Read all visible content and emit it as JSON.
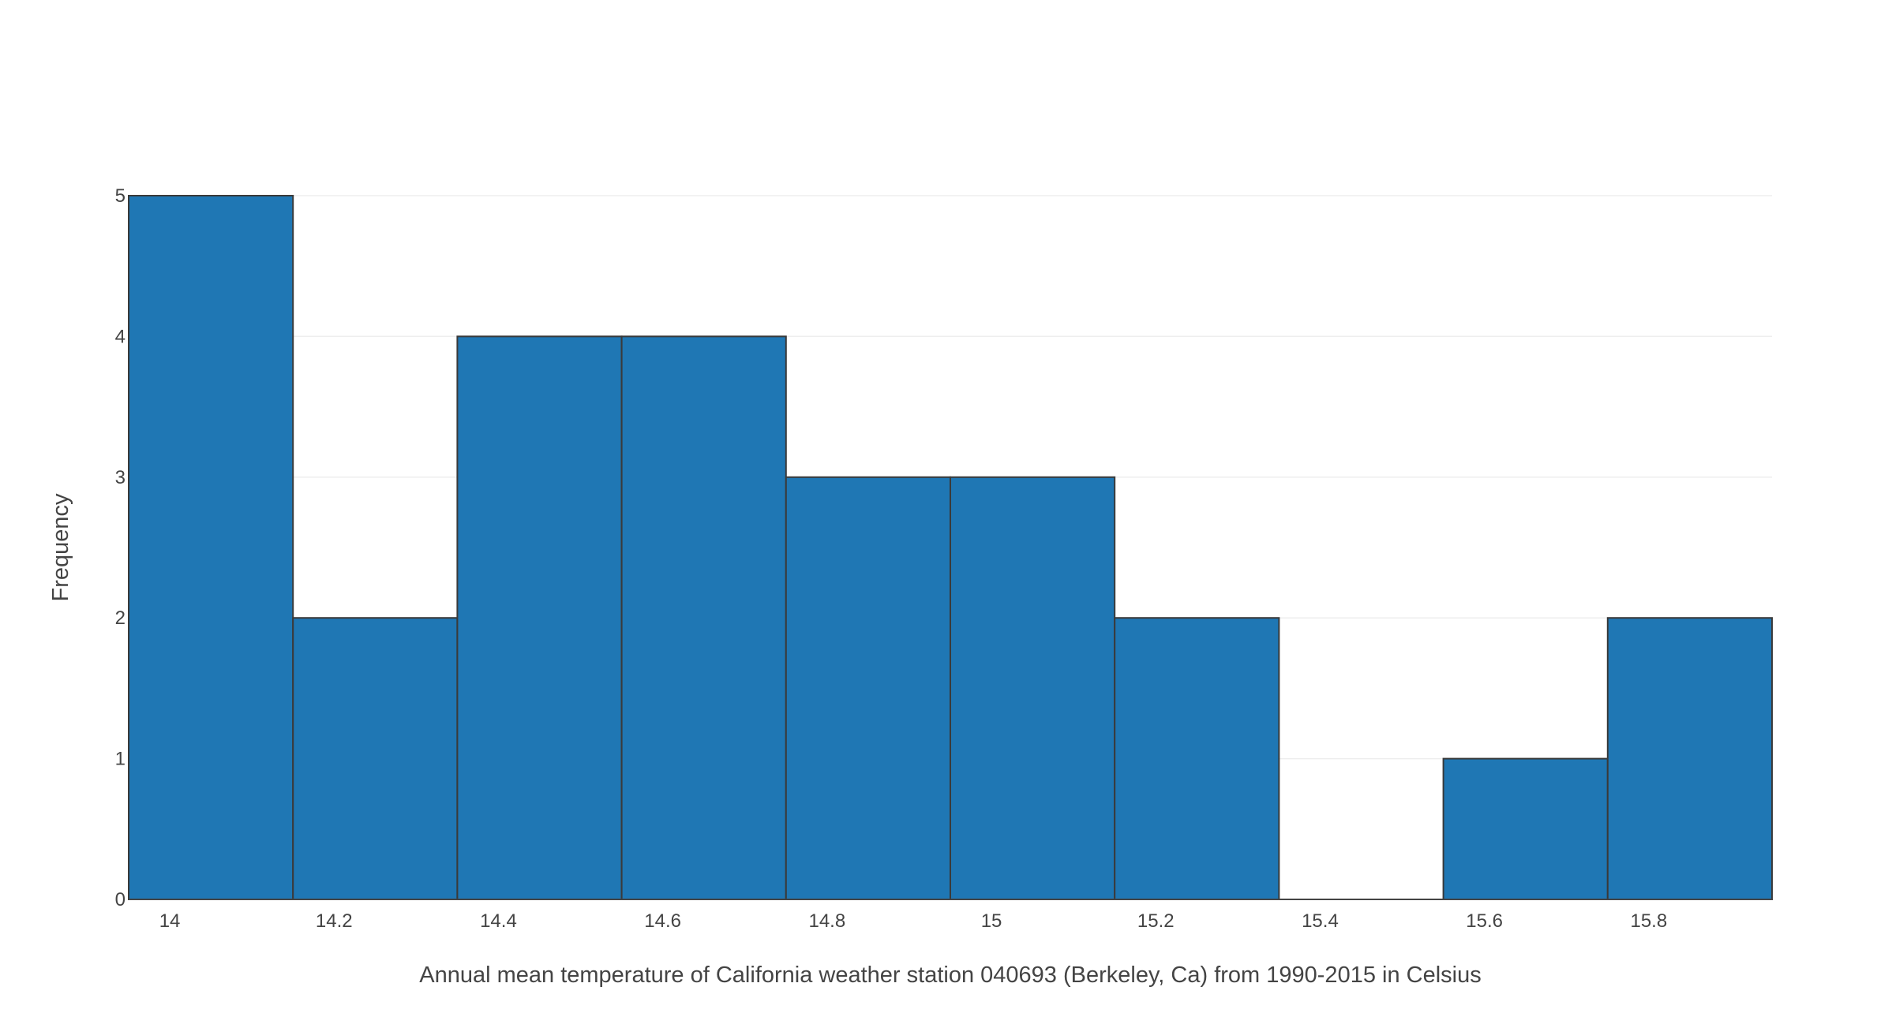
{
  "chart_data": {
    "type": "bar",
    "subtype": "histogram",
    "bins": [
      {
        "start": 13.95,
        "end": 14.15,
        "count": 5
      },
      {
        "start": 14.15,
        "end": 14.35,
        "count": 2
      },
      {
        "start": 14.35,
        "end": 14.55,
        "count": 4
      },
      {
        "start": 14.55,
        "end": 14.75,
        "count": 4
      },
      {
        "start": 14.75,
        "end": 14.95,
        "count": 3
      },
      {
        "start": 14.95,
        "end": 15.15,
        "count": 3
      },
      {
        "start": 15.15,
        "end": 15.35,
        "count": 2
      },
      {
        "start": 15.35,
        "end": 15.55,
        "count": 0
      },
      {
        "start": 15.55,
        "end": 15.75,
        "count": 1
      },
      {
        "start": 15.75,
        "end": 15.95,
        "count": 2
      }
    ],
    "xlabel": "Annual mean temperature of California weather station 040693 (Berkeley, Ca) from 1990-2015 in Celsius",
    "ylabel": "Frequency",
    "xlim": [
      13.95,
      15.95
    ],
    "ylim": [
      0,
      5
    ],
    "x_ticks": [
      14,
      14.2,
      14.4,
      14.6,
      14.8,
      15,
      15.2,
      15.4,
      15.6,
      15.8
    ],
    "x_tick_labels": [
      "14",
      "14.2",
      "14.4",
      "14.6",
      "14.8",
      "15",
      "15.2",
      "15.4",
      "15.6",
      "15.8"
    ],
    "y_ticks": [
      0,
      1,
      2,
      3,
      4,
      5
    ],
    "y_tick_labels": [
      "0",
      "1",
      "2",
      "3",
      "4",
      "5"
    ],
    "grid": "horizontal",
    "bar_color": "#1f77b4",
    "bar_edge_color": "#3a3a3a"
  }
}
